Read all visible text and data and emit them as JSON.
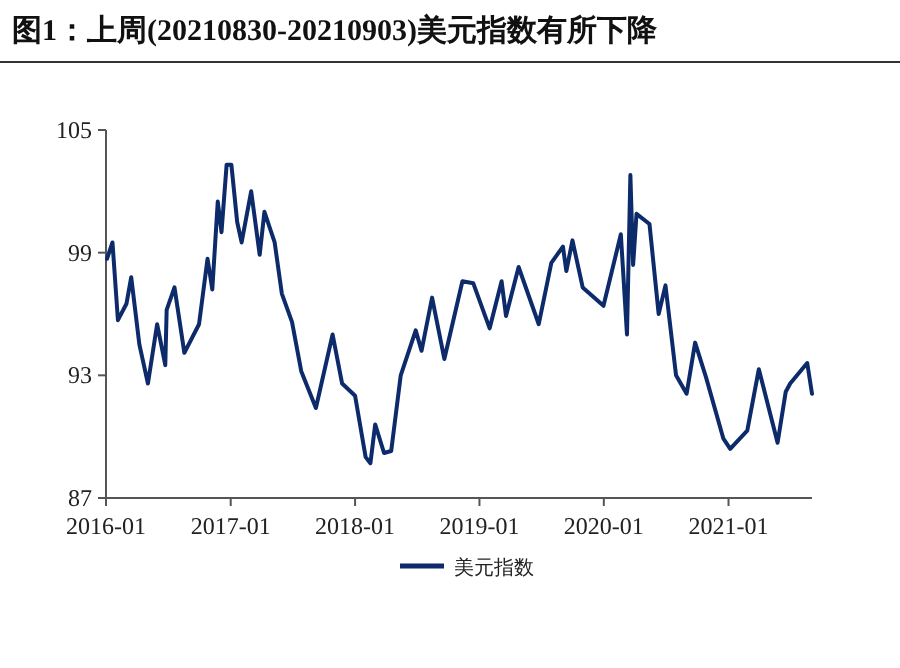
{
  "chart_data": {
    "type": "line",
    "title": "图1：上周(20210830-20210903)美元指数有所下降",
    "x": [
      "2016-01-04",
      "2016-01-20",
      "2016-02-05",
      "2016-03-01",
      "2016-03-15",
      "2016-04-08",
      "2016-05-03",
      "2016-05-30",
      "2016-06-23",
      "2016-06-27",
      "2016-07-20",
      "2016-08-18",
      "2016-09-30",
      "2016-10-25",
      "2016-11-08",
      "2016-11-24",
      "2016-12-05",
      "2016-12-20",
      "2017-01-03",
      "2017-01-20",
      "2017-02-02",
      "2017-03-02",
      "2017-03-27",
      "2017-04-10",
      "2017-05-10",
      "2017-05-31",
      "2017-06-30",
      "2017-07-27",
      "2017-09-08",
      "2017-10-27",
      "2017-11-24",
      "2018-01-01",
      "2018-02-01",
      "2018-02-15",
      "2018-03-01",
      "2018-03-27",
      "2018-04-17",
      "2018-05-15",
      "2018-06-28",
      "2018-07-15",
      "2018-08-15",
      "2018-09-20",
      "2018-11-12",
      "2018-12-14",
      "2019-01-31",
      "2019-03-07",
      "2019-03-20",
      "2019-04-26",
      "2019-06-24",
      "2019-07-31",
      "2019-09-03",
      "2019-09-13",
      "2019-10-01",
      "2019-10-31",
      "2019-12-31",
      "2020-02-20",
      "2020-03-09",
      "2020-03-19",
      "2020-03-27",
      "2020-04-06",
      "2020-05-14",
      "2020-06-10",
      "2020-06-30",
      "2020-07-31",
      "2020-08-31",
      "2020-09-25",
      "2020-10-27",
      "2020-12-17",
      "2021-01-06",
      "2021-02-25",
      "2021-03-31",
      "2021-05-25",
      "2021-06-18",
      "2021-07-01",
      "2021-08-20",
      "2021-09-03"
    ],
    "series": [
      {
        "name": "美元指数",
        "color": "#0d2b6b",
        "values": [
          98.7,
          99.5,
          95.7,
          96.5,
          97.8,
          94.5,
          92.6,
          95.5,
          93.5,
          96.2,
          97.3,
          94.1,
          95.5,
          98.7,
          97.2,
          101.5,
          100.0,
          103.3,
          103.3,
          100.5,
          99.5,
          102.0,
          98.9,
          101.0,
          99.5,
          97.0,
          95.6,
          93.2,
          91.4,
          95.0,
          92.6,
          92.0,
          89.0,
          88.7,
          90.6,
          89.2,
          89.3,
          93.0,
          95.2,
          94.2,
          96.8,
          93.8,
          97.6,
          97.5,
          95.3,
          97.6,
          95.9,
          98.3,
          95.5,
          98.5,
          99.3,
          98.1,
          99.6,
          97.3,
          96.4,
          99.9,
          95.0,
          102.8,
          98.4,
          100.9,
          100.4,
          96.0,
          97.4,
          93.0,
          92.1,
          94.6,
          92.9,
          89.9,
          89.4,
          90.3,
          93.3,
          89.7,
          92.2,
          92.6,
          93.6,
          92.1
        ]
      }
    ],
    "xlim": [
      "2016-01-01",
      "2021-09-03"
    ],
    "xticks": [
      {
        "value": "2016-01-01",
        "label": "2016-01"
      },
      {
        "value": "2017-01-01",
        "label": "2017-01"
      },
      {
        "value": "2018-01-01",
        "label": "2018-01"
      },
      {
        "value": "2019-01-01",
        "label": "2019-01"
      },
      {
        "value": "2020-01-01",
        "label": "2020-01"
      },
      {
        "value": "2021-01-01",
        "label": "2021-01"
      }
    ],
    "ylim": [
      87,
      105
    ],
    "yticks": [
      87,
      93,
      99,
      105
    ],
    "grid": false,
    "legend": "bottom",
    "marker": "none",
    "line_style": "solid"
  }
}
